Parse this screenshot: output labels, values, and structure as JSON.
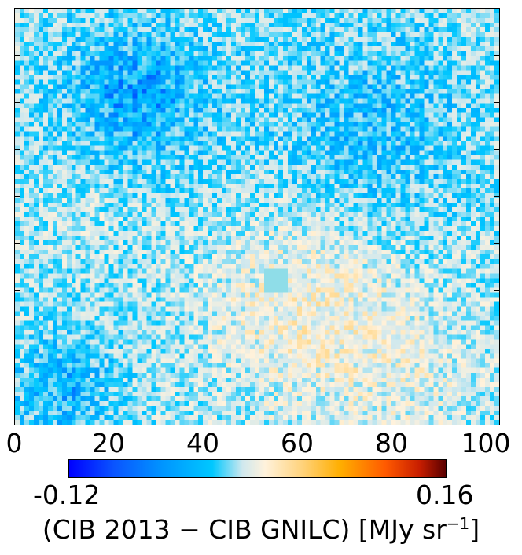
{
  "chart_data": {
    "type": "heatmap",
    "title": "",
    "xlabel": "",
    "ylabel": "",
    "xlim": [
      0,
      103
    ],
    "x_ticks": [
      "0",
      "20",
      "40",
      "60",
      "80",
      "100"
    ],
    "colorbar": {
      "min": -0.12,
      "max": 0.16,
      "min_label": "-0.12",
      "max_label": "0.16",
      "label_main": "(CIB 2013 − CIB GNILC) [MJy sr",
      "label_exp": "−1",
      "label_close": "]",
      "colormap": [
        "#0000ff",
        "#0096ff",
        "#00c8ff",
        "#cfe8ee",
        "#fff2dc",
        "#ffd27a",
        "#ffae00",
        "#ff5a00",
        "#5a0000"
      ]
    },
    "grid": {
      "cols": 103,
      "rows": 88,
      "masked_value_color": "#8fdde8",
      "description_regions": [
        {
          "cx": 63,
          "cy": 63,
          "r": 22,
          "level": 0.035
        },
        {
          "cx": 15,
          "cy": 42,
          "r": 10,
          "level": 0.01
        },
        {
          "cx": 25,
          "cy": 18,
          "r": 18,
          "level": -0.045
        },
        {
          "cx": 75,
          "cy": 25,
          "r": 22,
          "level": -0.035
        },
        {
          "cx": 85,
          "cy": 78,
          "r": 15,
          "level": 0.015
        },
        {
          "cx": 10,
          "cy": 80,
          "r": 12,
          "level": -0.04
        }
      ]
    }
  }
}
